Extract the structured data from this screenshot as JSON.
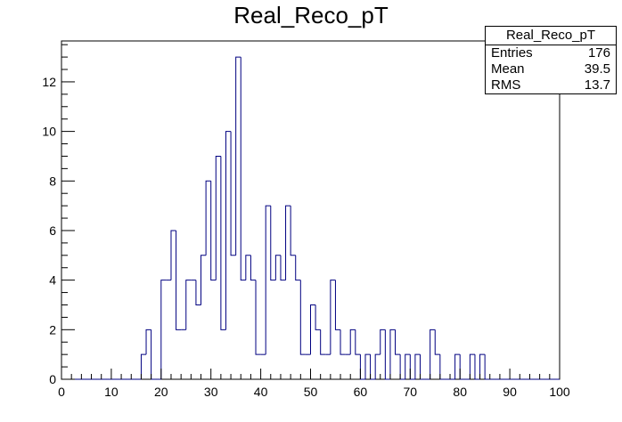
{
  "chart_data": {
    "type": "bar",
    "title": "Real_Reco_pT",
    "xlabel": "",
    "ylabel": "",
    "xlim": [
      0,
      100
    ],
    "ylim": [
      0,
      13.65
    ],
    "bin_width": 1,
    "x_ticks": [
      0,
      10,
      20,
      30,
      40,
      50,
      60,
      70,
      80,
      90,
      100
    ],
    "y_ticks": [
      0,
      2,
      4,
      6,
      8,
      10,
      12
    ],
    "line_color": "#000080",
    "grid": false,
    "values": [
      0,
      0,
      0,
      0,
      0,
      0,
      0,
      0,
      0,
      0,
      0,
      0,
      0,
      0,
      0,
      0,
      1,
      2,
      0,
      0,
      4,
      4,
      6,
      2,
      2,
      4,
      4,
      3,
      5,
      8,
      4,
      9,
      2,
      10,
      5,
      13,
      4,
      5,
      4,
      1,
      1,
      7,
      4,
      5,
      4,
      7,
      5,
      4,
      1,
      1,
      3,
      2,
      1,
      1,
      4,
      2,
      1,
      1,
      2,
      1,
      0,
      1,
      0,
      1,
      2,
      0,
      2,
      1,
      0,
      1,
      0,
      1,
      0,
      0,
      2,
      1,
      0,
      0,
      0,
      1,
      0,
      0,
      1,
      0,
      1,
      0,
      0,
      0,
      0,
      0,
      0,
      0,
      0,
      0,
      0,
      0,
      0,
      0,
      0,
      0
    ]
  },
  "stats": {
    "title": "Real_Reco_pT",
    "rows": [
      {
        "label": "Entries",
        "value": "176"
      },
      {
        "label": "Mean",
        "value": "39.5"
      },
      {
        "label": "RMS",
        "value": "13.7"
      }
    ]
  }
}
